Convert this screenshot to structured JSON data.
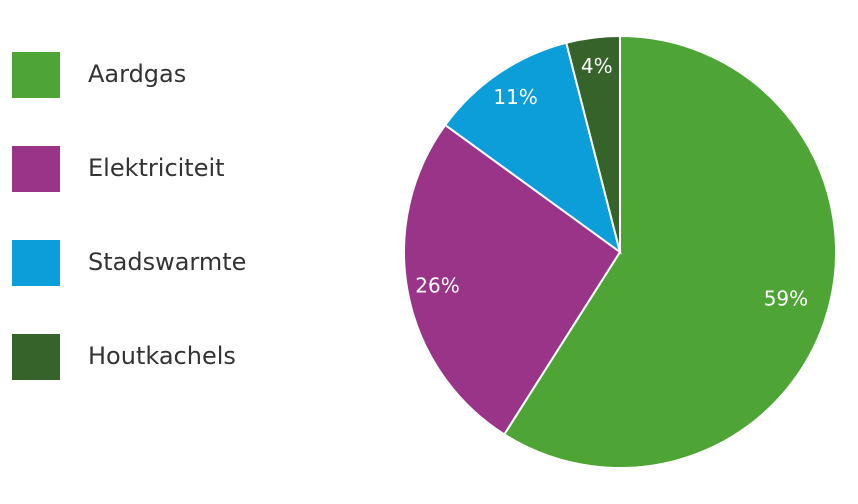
{
  "chart_data": {
    "type": "pie",
    "categories": [
      "Aardgas",
      "Elektriciteit",
      "Stadswarmte",
      "Houtkachels"
    ],
    "values": [
      59,
      26,
      11,
      4
    ],
    "value_labels": [
      "59%",
      "26%",
      "11%",
      "4%"
    ],
    "colors": [
      "#4ea535",
      "#993489",
      "#0b9ed9",
      "#35632a"
    ],
    "legend": "left"
  }
}
